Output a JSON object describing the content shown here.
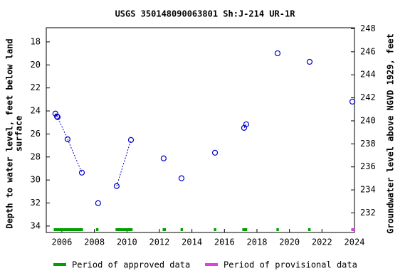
{
  "chart_data": {
    "type": "scatter",
    "title": "USGS 350148090063801 Sh:J-214   UR-1R",
    "y_label": [
      "Depth to water level, feet below land",
      "surface"
    ],
    "y2_label": "Groundwater level above NGVD 1929, feet",
    "xlim": [
      2005.04,
      2024.0
    ],
    "xticks": [
      2006,
      2008,
      2010,
      2012,
      2014,
      2016,
      2018,
      2020,
      2022,
      2024
    ],
    "ylim": [
      34.56,
      16.77
    ],
    "yticks": [
      18,
      20,
      22,
      24,
      26,
      28,
      30,
      32,
      34
    ],
    "y2lim": [
      230.3,
      248.09
    ],
    "y2ticks": [
      232,
      234,
      236,
      238,
      240,
      242,
      244,
      246,
      248
    ],
    "series": [
      {
        "name": "Depth to water level",
        "color": "#0000cc",
        "x": [
          2005.6,
          2005.7,
          2005.74,
          2006.35,
          2007.23,
          null,
          2008.23,
          null,
          2009.37,
          2010.25,
          null,
          2012.26,
          null,
          2013.36,
          null,
          2015.42,
          null,
          2017.21,
          2017.34,
          null,
          2019.27,
          null,
          2021.24,
          null,
          2023.87
        ],
        "values": [
          24.23,
          24.48,
          24.54,
          26.46,
          29.36,
          null,
          32.01,
          null,
          30.53,
          26.52,
          null,
          28.12,
          null,
          29.85,
          null,
          27.63,
          null,
          25.47,
          25.16,
          null,
          18.99,
          null,
          19.73,
          null,
          23.19
        ]
      }
    ],
    "periods": [
      {
        "name": "Period of approved data",
        "color": "#00a000",
        "ranges": [
          [
            2005.5,
            2007.3
          ],
          [
            2008.1,
            2008.25
          ],
          [
            2009.3,
            2010.35
          ],
          [
            2012.2,
            2012.4
          ],
          [
            2013.3,
            2013.45
          ],
          [
            2015.35,
            2015.5
          ],
          [
            2017.1,
            2017.4
          ],
          [
            2019.2,
            2019.35
          ],
          [
            2021.15,
            2021.3
          ]
        ]
      },
      {
        "name": "Period of provisional data",
        "color": "#e040e0",
        "ranges": [
          [
            2023.8,
            2024.0
          ]
        ]
      }
    ]
  }
}
